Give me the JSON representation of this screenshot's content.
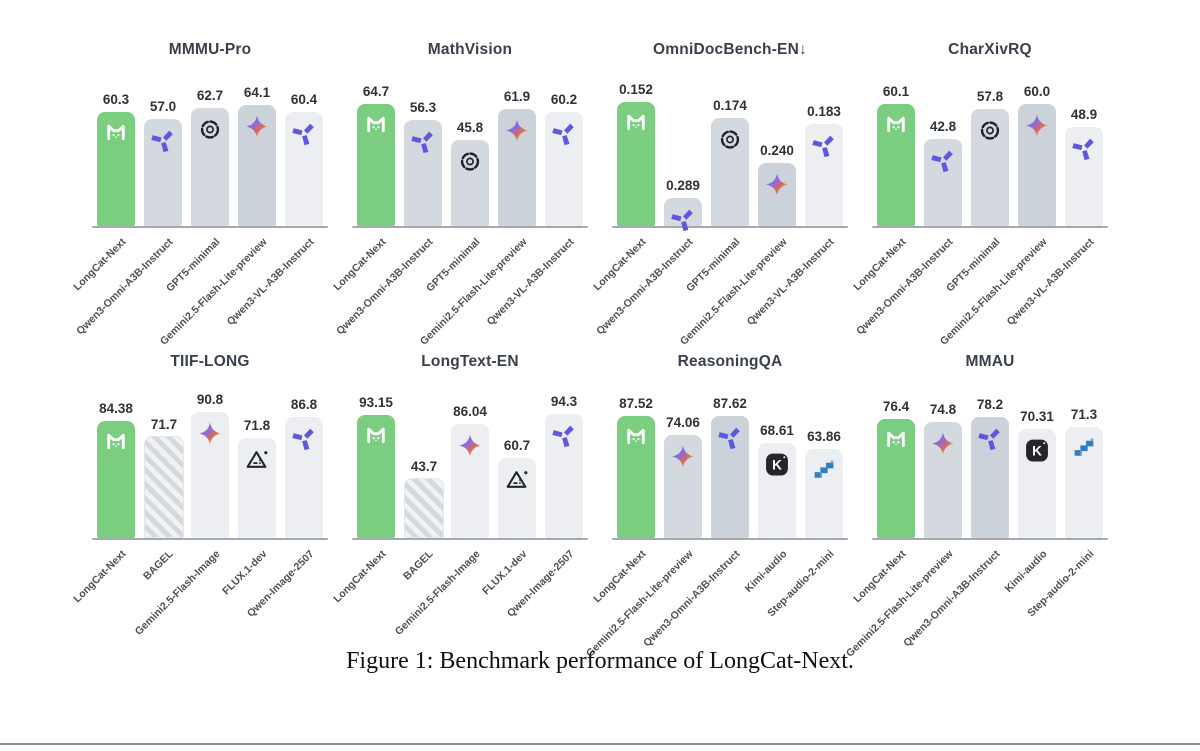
{
  "figure": {
    "caption": "Figure 1: Benchmark performance of LongCat-Next."
  },
  "colors": {
    "accent_green": "#7bcd7f",
    "bar_gray": "#d4d8df",
    "bar_gray_dark": "#ccd2da",
    "bar_light": "#eceef1",
    "axis_line": "#a4aab1",
    "title_text": "#3a414c",
    "value_text": "#2e3338",
    "label_text": "#4c5157",
    "qwen_purple": "#5d58dd",
    "kimi_black": "#26262a",
    "step_blue": "#2f7fc1",
    "divider_gray": "#8b8d90"
  },
  "chart_data": [
    {
      "type": "bar",
      "title": "MMMU-Pro",
      "categories": [
        "LongCat-Next",
        "Qwen3-Omni-A3B-Instruct",
        "GPT5-minimal",
        "Gemini2.5-Flash-Lite-preview",
        "Qwen3-VL-A3B-Instruct"
      ],
      "values": [
        60.3,
        57.0,
        62.7,
        64.1,
        60.4
      ],
      "display_values": [
        "60.3",
        "57.0",
        "62.7",
        "64.1",
        "60.4"
      ],
      "ylim": [
        0,
        70
      ],
      "lower_is_better": false,
      "icons": [
        "longcat-icon",
        "qwen-icon",
        "openai-icon",
        "gemini-icon",
        "qwen-icon"
      ],
      "bar_styles": [
        "green",
        "gray",
        "gray",
        "gray2",
        "light"
      ]
    },
    {
      "type": "bar",
      "title": "MathVision",
      "categories": [
        "LongCat-Next",
        "Qwen3-Omni-A3B-Instruct",
        "GPT5-minimal",
        "Gemini2.5-Flash-Lite-preview",
        "Qwen3-VL-A3B-Instruct"
      ],
      "values": [
        64.7,
        56.3,
        45.8,
        61.9,
        60.2
      ],
      "display_values": [
        "64.7",
        "56.3",
        "45.8",
        "61.9",
        "60.2"
      ],
      "ylim": [
        0,
        70
      ],
      "lower_is_better": false,
      "icons": [
        "longcat-icon",
        "qwen-icon",
        "openai-icon",
        "gemini-icon",
        "qwen-icon"
      ],
      "bar_styles": [
        "green",
        "gray",
        "gray",
        "gray2",
        "light"
      ]
    },
    {
      "type": "bar",
      "title": "OmniDocBench-EN↓",
      "categories": [
        "LongCat-Next",
        "Qwen3-Omni-A3B-Instruct",
        "GPT5-minimal",
        "Gemini2.5-Flash-Lite-preview",
        "Qwen3-VL-A3B-Instruct"
      ],
      "values": [
        0.152,
        0.289,
        0.174,
        0.24,
        0.183
      ],
      "display_values": [
        "0.152",
        "0.289",
        "0.174",
        "0.240",
        "0.183"
      ],
      "ylim": [
        0.14,
        0.33
      ],
      "lower_is_better": true,
      "icons": [
        "longcat-icon",
        "qwen-icon",
        "openai-icon",
        "gemini-icon",
        "qwen-icon"
      ],
      "bar_styles": [
        "green",
        "gray",
        "gray",
        "gray2",
        "light"
      ]
    },
    {
      "type": "bar",
      "title": "CharXivRQ",
      "categories": [
        "LongCat-Next",
        "Qwen3-Omni-A3B-Instruct",
        "GPT5-minimal",
        "Gemini2.5-Flash-Lite-preview",
        "Qwen3-VL-A3B-Instruct"
      ],
      "values": [
        60.1,
        42.8,
        57.8,
        60.0,
        48.9
      ],
      "display_values": [
        "60.1",
        "42.8",
        "57.8",
        "60.0",
        "48.9"
      ],
      "ylim": [
        0,
        65
      ],
      "lower_is_better": false,
      "icons": [
        "longcat-icon",
        "qwen-icon",
        "openai-icon",
        "gemini-icon",
        "qwen-icon"
      ],
      "bar_styles": [
        "green",
        "gray",
        "gray",
        "gray2",
        "light"
      ]
    },
    {
      "type": "bar",
      "title": "TIIF-LONG",
      "categories": [
        "LongCat-Next",
        "BAGEL",
        "Gemini2.5-Flash-Image",
        "FLUX.1-dev",
        "Qwen-Image-2507"
      ],
      "values": [
        84.38,
        71.7,
        90.8,
        71.8,
        86.8
      ],
      "display_values": [
        "84.38",
        "71.7",
        "90.8",
        "71.8",
        "86.8"
      ],
      "ylim": [
        0,
        95
      ],
      "lower_is_better": false,
      "icons": [
        "longcat-icon",
        null,
        "gemini-icon",
        "flux-icon",
        "qwen-icon"
      ],
      "bar_styles": [
        "green",
        "hatched",
        "light",
        "light",
        "light"
      ]
    },
    {
      "type": "bar",
      "title": "LongText-EN",
      "categories": [
        "LongCat-Next",
        "BAGEL",
        "Gemini2.5-Flash-Image",
        "FLUX.1-dev",
        "Qwen-Image-2507"
      ],
      "values": [
        93.15,
        43.7,
        86.04,
        60.7,
        94.3
      ],
      "display_values": [
        "93.15",
        "43.7",
        "86.04",
        "60.7",
        "94.3"
      ],
      "ylim": [
        0,
        100
      ],
      "lower_is_better": false,
      "icons": [
        "longcat-icon",
        null,
        "gemini-icon",
        "flux-icon",
        "qwen-icon"
      ],
      "bar_styles": [
        "green",
        "hatched",
        "light",
        "light",
        "light"
      ]
    },
    {
      "type": "bar",
      "title": "ReasoningQA",
      "categories": [
        "LongCat-Next",
        "Gemini2.5-Flash-Lite-preview",
        "Qwen3-Omni-A3B-Instruct",
        "Kimi-audio",
        "Step-audio-2-mini"
      ],
      "values": [
        87.52,
        74.06,
        87.62,
        68.61,
        63.86
      ],
      "display_values": [
        "87.52",
        "74.06",
        "87.62",
        "68.61",
        "63.86"
      ],
      "ylim": [
        0,
        95
      ],
      "lower_is_better": false,
      "icons": [
        "longcat-icon",
        "gemini-icon",
        "qwen-icon",
        "kimi-icon",
        "step-audio-icon"
      ],
      "bar_styles": [
        "green",
        "gray",
        "gray2",
        "light",
        "light"
      ]
    },
    {
      "type": "bar",
      "title": "MMAU",
      "categories": [
        "LongCat-Next",
        "Gemini2.5-Flash-Lite-preview",
        "Qwen3-Omni-A3B-Instruct",
        "Kimi-audio",
        "Step-audio-2-mini"
      ],
      "values": [
        76.4,
        74.8,
        78.2,
        70.31,
        71.3
      ],
      "display_values": [
        "76.4",
        "74.8",
        "78.2",
        "70.31",
        "71.3"
      ],
      "ylim": [
        0,
        85
      ],
      "lower_is_better": false,
      "icons": [
        "longcat-icon",
        "gemini-icon",
        "qwen-icon",
        "kimi-icon",
        "step-audio-icon"
      ],
      "bar_styles": [
        "green",
        "gray",
        "gray2",
        "light",
        "light"
      ]
    }
  ]
}
